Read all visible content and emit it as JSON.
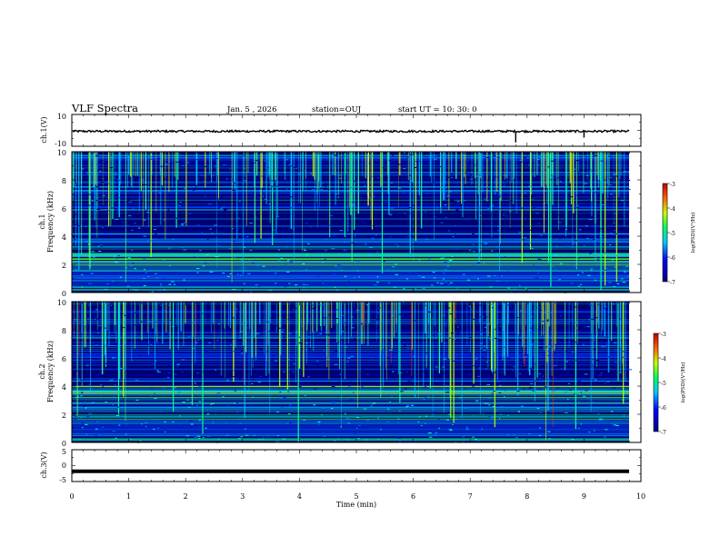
{
  "header": {
    "title": "VLF Spectra",
    "date": "Jan. 5 , 2026",
    "station": "station=OUJ",
    "start": "start UT =  10: 30: 0"
  },
  "chart_data": [
    {
      "type": "line",
      "name": "ch1-waveform",
      "ylabel": "ch.1(V)",
      "ylim": [
        -10,
        10
      ],
      "ytick_labels": [
        "10",
        "-10"
      ],
      "baseline": 0,
      "spikes": [
        [
          7.8,
          -7
        ],
        [
          9.0,
          -4
        ]
      ]
    },
    {
      "type": "heatmap",
      "name": "ch1-spectrogram",
      "ylabel_top": "ch.1",
      "ylabel": "Frequency (kHz)",
      "ylim": [
        0,
        10
      ],
      "ytick_labels": [
        "0",
        "2",
        "4",
        "6",
        "8",
        "10"
      ],
      "colorbar": {
        "label": "log(PSD)(V²/Hz)",
        "range": [
          -7,
          -3
        ],
        "tick_labels": [
          "-7",
          "-6",
          "-5",
          "-4",
          "-3"
        ]
      }
    },
    {
      "type": "heatmap",
      "name": "ch2-spectrogram",
      "ylabel_top": "ch.2",
      "ylabel": "Frequency (kHz)",
      "ylim": [
        0,
        10
      ],
      "ytick_labels": [
        "0",
        "2",
        "4",
        "6",
        "8",
        "10"
      ],
      "colorbar": {
        "label": "log(PSD)(V²/Hz)",
        "range": [
          -7,
          -3
        ],
        "tick_labels": [
          "-7",
          "-6",
          "-5",
          "-4",
          "-3"
        ]
      }
    },
    {
      "type": "line",
      "name": "ch3-waveform",
      "ylabel": "ch.3(V)",
      "ylim": [
        -5,
        5
      ],
      "ytick_labels": [
        "5",
        "0",
        "-5"
      ],
      "baseline": -1.5
    }
  ],
  "xaxis": {
    "label": "Time (min)",
    "range": [
      0,
      10
    ],
    "tick_labels": [
      "0",
      "1",
      "2",
      "3",
      "4",
      "5",
      "6",
      "7",
      "8",
      "9",
      "10"
    ]
  }
}
